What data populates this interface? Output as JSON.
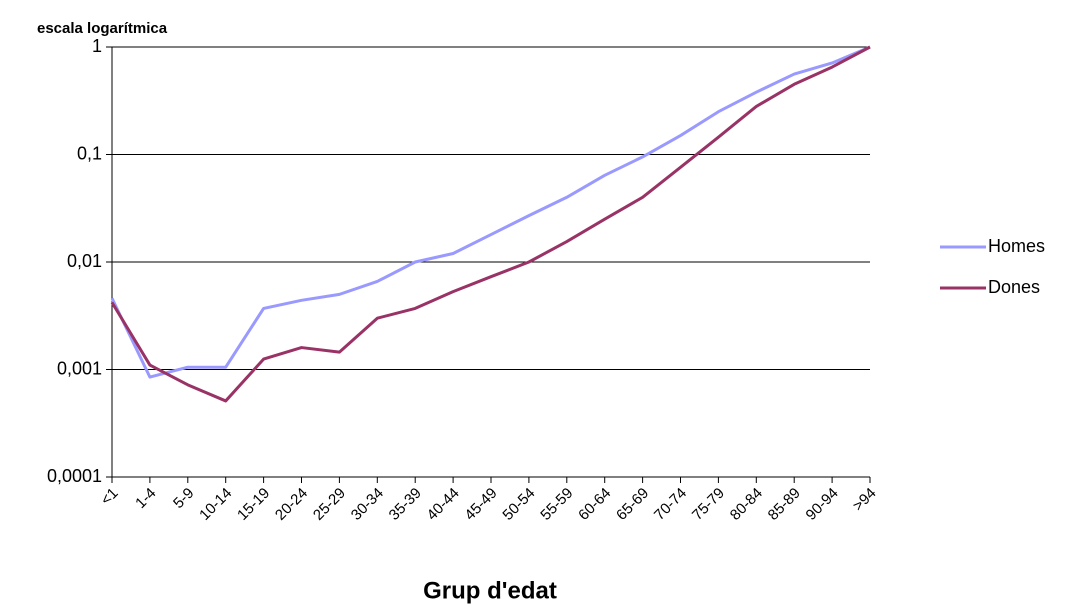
{
  "chart_data": {
    "type": "line",
    "ylabel": "escala logarítmica",
    "xlabel": "Grup d'edat",
    "categories": [
      "<1",
      "1-4",
      "5-9",
      "10-14",
      "15-19",
      "20-24",
      "25-29",
      "30-34",
      "35-39",
      "40-44",
      "45-49",
      "50-54",
      "55-59",
      "60-64",
      "65-69",
      "70-74",
      "75-79",
      "80-84",
      "85-89",
      "90-94",
      ">94"
    ],
    "series": [
      {
        "name": "Homes",
        "color": "#9999ff",
        "values": [
          0.0046,
          0.00085,
          0.00105,
          0.00105,
          0.0037,
          0.0044,
          0.005,
          0.0066,
          0.01,
          0.012,
          0.018,
          0.027,
          0.04,
          0.064,
          0.095,
          0.15,
          0.25,
          0.38,
          0.56,
          0.71,
          1
        ]
      },
      {
        "name": "Dones",
        "color": "#993366",
        "values": [
          0.0042,
          0.0011,
          0.00072,
          0.00051,
          0.00125,
          0.0016,
          0.00145,
          0.003,
          0.0037,
          0.0053,
          0.0073,
          0.01,
          0.0155,
          0.025,
          0.04,
          0.076,
          0.145,
          0.28,
          0.45,
          0.65,
          1
        ]
      }
    ],
    "log_scale": true,
    "ylim": [
      0.0001,
      1
    ],
    "yticks": [
      {
        "value": 0.0001,
        "label": "0,0001"
      },
      {
        "value": 0.001,
        "label": "0,001"
      },
      {
        "value": 0.01,
        "label": "0,01"
      },
      {
        "value": 0.1,
        "label": "0,1"
      },
      1
    ],
    "grid": true,
    "legend": "right"
  }
}
